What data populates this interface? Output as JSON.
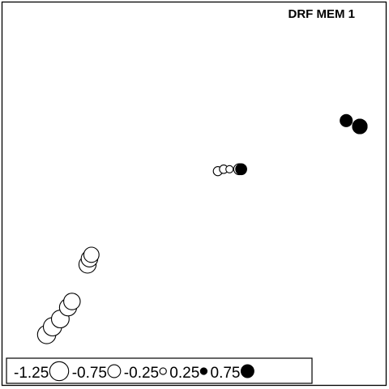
{
  "chart_data": {
    "type": "scatter",
    "title": "DRF MEM 1",
    "xlabel": "",
    "ylabel": "",
    "grid": false,
    "legend_position": "bottom-left",
    "encoding": "Circle size encodes |value|; open circles are negative values, filled circles are positive values.",
    "legend": [
      {
        "label": "-1.25",
        "value": -1.25
      },
      {
        "label": "-0.75",
        "value": -0.75
      },
      {
        "label": "-0.25",
        "value": -0.25
      },
      {
        "label": "0.25",
        "value": 0.25
      },
      {
        "label": "0.75",
        "value": 0.75
      }
    ],
    "points": [
      {
        "x": 0.12,
        "y": 0.14,
        "value": -1.2
      },
      {
        "x": 0.135,
        "y": 0.16,
        "value": -1.2
      },
      {
        "x": 0.155,
        "y": 0.18,
        "value": -1.15
      },
      {
        "x": 0.175,
        "y": 0.21,
        "value": -1.1
      },
      {
        "x": 0.185,
        "y": 0.225,
        "value": -1.05
      },
      {
        "x": 0.225,
        "y": 0.32,
        "value": -1.1
      },
      {
        "x": 0.23,
        "y": 0.335,
        "value": -1.05
      },
      {
        "x": 0.235,
        "y": 0.345,
        "value": -0.95
      },
      {
        "x": 0.56,
        "y": 0.56,
        "value": -0.45
      },
      {
        "x": 0.575,
        "y": 0.565,
        "value": -0.4
      },
      {
        "x": 0.59,
        "y": 0.565,
        "value": -0.3
      },
      {
        "x": 0.615,
        "y": 0.565,
        "value": -0.6
      },
      {
        "x": 0.62,
        "y": 0.565,
        "value": 0.6
      },
      {
        "x": 0.89,
        "y": 0.69,
        "value": 0.7
      },
      {
        "x": 0.925,
        "y": 0.675,
        "value": -0.9
      },
      {
        "x": 0.925,
        "y": 0.675,
        "value": 0.9
      }
    ]
  }
}
